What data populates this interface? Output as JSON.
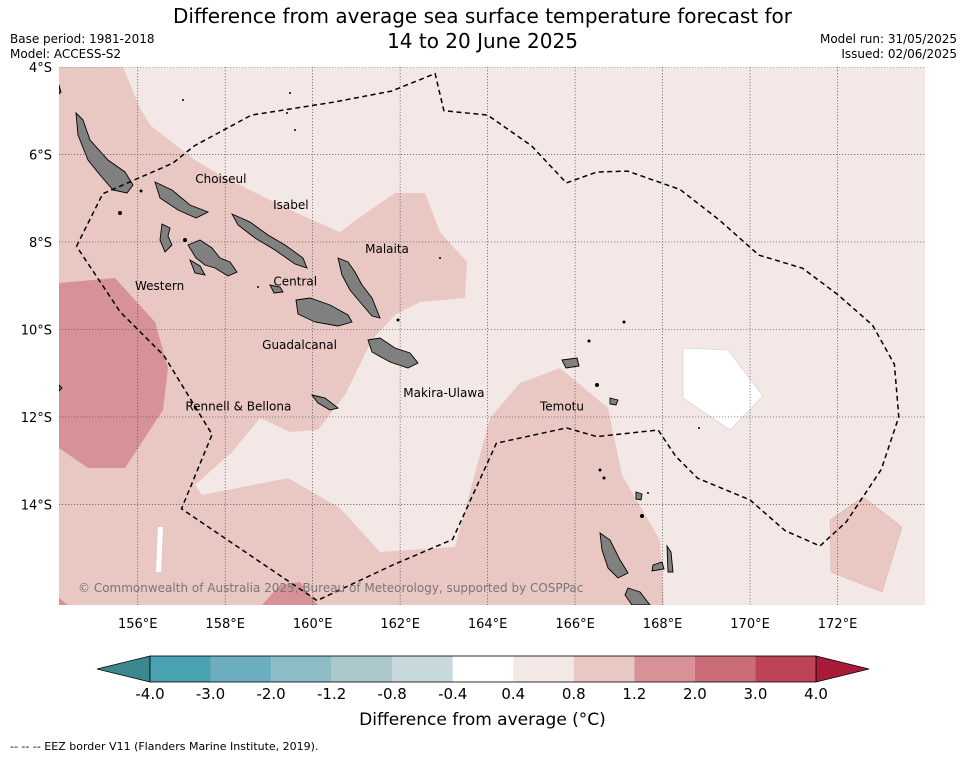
{
  "header": {
    "title_line1": "Difference from average sea surface temperature forecast for",
    "title_line2": "14 to 20 June 2025",
    "base_period": "Base period: 1981-2018",
    "model": "Model: ACCESS-S2",
    "model_run": "Model run: 31/05/2025",
    "issued": "Issued: 02/06/2025"
  },
  "map": {
    "lon_range": [
      154.2,
      174.0
    ],
    "lat_range": [
      -16.3,
      -4.0
    ],
    "lon_ticks": [
      {
        "value": 156,
        "label": "156°E"
      },
      {
        "value": 158,
        "label": "158°E"
      },
      {
        "value": 160,
        "label": "160°E"
      },
      {
        "value": 162,
        "label": "162°E"
      },
      {
        "value": 164,
        "label": "164°E"
      },
      {
        "value": 166,
        "label": "166°E"
      },
      {
        "value": 168,
        "label": "168°E"
      },
      {
        "value": 170,
        "label": "170°E"
      },
      {
        "value": 172,
        "label": "172°E"
      }
    ],
    "lat_ticks": [
      {
        "value": -4,
        "label": "4°S"
      },
      {
        "value": -6,
        "label": "6°S"
      },
      {
        "value": -8,
        "label": "8°S"
      },
      {
        "value": -10,
        "label": "10°S"
      },
      {
        "value": -12,
        "label": "12°S"
      },
      {
        "value": -14,
        "label": "14°S"
      }
    ],
    "region_labels": [
      {
        "name": "Choiseul",
        "lon": 157.9,
        "lat": -6.65
      },
      {
        "name": "Isabel",
        "lon": 159.5,
        "lat": -7.25
      },
      {
        "name": "Malaita",
        "lon": 161.7,
        "lat": -8.25
      },
      {
        "name": "Western",
        "lon": 156.5,
        "lat": -9.1
      },
      {
        "name": "Central",
        "lon": 159.6,
        "lat": -9.0
      },
      {
        "name": "Guadalcanal",
        "lon": 159.7,
        "lat": -10.45
      },
      {
        "name": "Makira-Ulawa",
        "lon": 163.0,
        "lat": -11.55
      },
      {
        "name": "Rennell & Bellona",
        "lon": 158.3,
        "lat": -11.85
      },
      {
        "name": "Temotu",
        "lon": 165.7,
        "lat": -11.85
      }
    ],
    "copyright": "© Commonwealth of Australia 2025, Bureau of Meteorology, supported by COSPPac",
    "eez_border": [
      [
        154.6,
        -8.1
      ],
      [
        155.2,
        -6.9
      ],
      [
        156.8,
        -6.2
      ],
      [
        157.3,
        -5.8
      ],
      [
        158.6,
        -5.1
      ],
      [
        160.5,
        -4.8
      ],
      [
        161.8,
        -4.55
      ],
      [
        162.8,
        -4.15
      ],
      [
        163.0,
        -5.0
      ],
      [
        164.0,
        -5.1
      ],
      [
        165.0,
        -5.8
      ],
      [
        165.8,
        -6.65
      ],
      [
        166.5,
        -6.4
      ],
      [
        167.2,
        -6.38
      ],
      [
        168.4,
        -6.8
      ],
      [
        169.3,
        -7.5
      ],
      [
        170.2,
        -8.3
      ],
      [
        171.2,
        -8.6
      ],
      [
        172.0,
        -9.2
      ],
      [
        172.8,
        -9.9
      ],
      [
        173.3,
        -10.8
      ],
      [
        173.4,
        -12.0
      ],
      [
        173.0,
        -13.2
      ],
      [
        172.2,
        -14.4
      ],
      [
        171.6,
        -14.95
      ],
      [
        170.8,
        -14.6
      ],
      [
        170.0,
        -13.9
      ],
      [
        168.8,
        -13.4
      ],
      [
        168.3,
        -12.9
      ],
      [
        167.9,
        -12.3
      ],
      [
        166.5,
        -12.45
      ],
      [
        165.8,
        -12.25
      ],
      [
        164.2,
        -12.6
      ],
      [
        163.2,
        -14.8
      ],
      [
        161.8,
        -15.4
      ],
      [
        160.1,
        -16.2
      ],
      [
        157.0,
        -14.1
      ],
      [
        157.7,
        -12.4
      ],
      [
        156.6,
        -10.6
      ],
      [
        155.6,
        -9.6
      ],
      [
        154.6,
        -8.1
      ]
    ]
  },
  "colorbar": {
    "tick_labels": [
      "-4.0",
      "-3.0",
      "-2.0",
      "-1.2",
      "-0.8",
      "-0.4",
      "0.4",
      "0.8",
      "1.2",
      "2.0",
      "3.0",
      "4.0"
    ],
    "colors": [
      "#4aa1b1",
      "#6cadbf",
      "#8cbcc6",
      "#aac8cc",
      "#c8d9dd",
      "#ffffff",
      "#f4e8e6",
      "#e9c8c4",
      "#d79298",
      "#cb6d77",
      "#bd4454"
    ],
    "under_color": "#3b8891",
    "over_color": "#a81c3a",
    "label": "Difference from average (°C)"
  },
  "footnote": "--  --  -- EEZ border V11 (Flanders Marine Institute, 2019)."
}
